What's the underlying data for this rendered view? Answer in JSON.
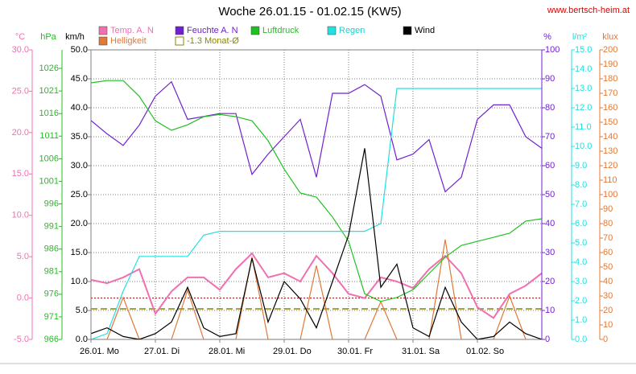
{
  "chart_data": {
    "type": "line",
    "title": "Woche 26.01.15 - 01.02.15 (KW5)",
    "source": "www.bertsch-heim.at",
    "grid": true,
    "x": [
      0,
      6,
      12,
      18,
      24,
      30,
      36,
      42,
      48,
      54,
      60,
      66,
      72,
      78,
      84,
      90,
      96,
      102,
      108,
      114,
      120,
      126,
      132,
      138,
      144,
      150,
      156,
      162,
      168
    ],
    "xlim": [
      0,
      168
    ],
    "xticks": [
      {
        "value": 0,
        "label": "26.01. Mo"
      },
      {
        "value": 24,
        "label": "27.01. Di"
      },
      {
        "value": 48,
        "label": "28.01. Mi"
      },
      {
        "value": 72,
        "label": "29.01. Do"
      },
      {
        "value": 96,
        "label": "30.01. Fr"
      },
      {
        "value": 120,
        "label": "31.01. Sa"
      },
      {
        "value": 144,
        "label": "01.02. So"
      }
    ],
    "series": [
      {
        "name": "Temp. A. N",
        "unit": "°C",
        "color": "#f070b0",
        "ylim": [
          -5,
          30
        ],
        "yticks": [
          {
            "value": -5,
            "label": "-5.0"
          },
          {
            "value": 0,
            "label": "0.0"
          },
          {
            "value": 5,
            "label": "5.0"
          },
          {
            "value": 10,
            "label": "10.0"
          },
          {
            "value": 15,
            "label": "15.0"
          },
          {
            "value": 20,
            "label": "20.0"
          },
          {
            "value": 25,
            "label": "25.0"
          },
          {
            "value": 30,
            "label": "30.0"
          }
        ],
        "values": [
          2.2,
          1.8,
          2.5,
          3.5,
          -1.9,
          0.8,
          2.5,
          2.5,
          1.0,
          3.5,
          5.4,
          2.5,
          3.0,
          2.0,
          5.1,
          3.0,
          0.5,
          0.0,
          2.5,
          2.0,
          1.2,
          3.5,
          5.1,
          3.0,
          -1.1,
          -2.4,
          0.5,
          1.5,
          3.0
        ]
      },
      {
        "name": "Helligkeit",
        "unit": "klux",
        "color": "#e07838",
        "ylim": [
          0,
          200
        ],
        "yticks": [
          0,
          10,
          20,
          30,
          40,
          50,
          60,
          70,
          80,
          90,
          100,
          110,
          120,
          130,
          140,
          150,
          160,
          170,
          180,
          190,
          200
        ],
        "values": [
          0,
          0,
          29,
          0,
          0,
          0,
          34,
          0,
          0,
          0,
          57,
          0,
          0,
          0,
          51,
          0,
          0,
          0,
          26,
          0,
          0,
          0,
          69,
          0,
          0,
          0,
          30,
          0,
          0
        ]
      },
      {
        "name": "Feuchte A. N",
        "unit": "%",
        "color": "#7020d0",
        "ylim": [
          0,
          100
        ],
        "yticks": [
          0,
          10,
          20,
          30,
          40,
          50,
          60,
          70,
          80,
          90,
          100
        ],
        "values": [
          75.6,
          71,
          67,
          74,
          84,
          89,
          76,
          77,
          78,
          78,
          57,
          64,
          70,
          76,
          56,
          85,
          85,
          88,
          84,
          62,
          64,
          69,
          51,
          56,
          76,
          81,
          81,
          70,
          66
        ]
      },
      {
        "name": "Luftdruck",
        "unit": "hPa",
        "color": "#20c020",
        "ylim": [
          966,
          1030.1
        ],
        "yticks": [
          966,
          971,
          976,
          981,
          986,
          991,
          996,
          1001,
          1006,
          1011,
          1016,
          1021,
          1026
        ],
        "values": [
          1022.8,
          1023.3,
          1023.3,
          1019.8,
          1014.4,
          1012.3,
          1013.5,
          1015.3,
          1015.8,
          1015.3,
          1014.4,
          1010.0,
          1003.7,
          998.4,
          997.5,
          993.1,
          987.7,
          976.1,
          974.4,
          975.3,
          977.0,
          980.6,
          984.2,
          986.8,
          987.7,
          988.6,
          989.5,
          992.2,
          992.7
        ]
      },
      {
        "name": "Regen",
        "unit": "l/m²",
        "color": "#20e0e0",
        "ylim": [
          0,
          15
        ],
        "yticks": [
          {
            "value": 0,
            "label": "0.0"
          },
          {
            "value": 1,
            "label": "1.0"
          },
          {
            "value": 2,
            "label": "2.0"
          },
          {
            "value": 3,
            "label": "3.0"
          },
          {
            "value": 4,
            "label": "4.0"
          },
          {
            "value": 5,
            "label": "5.0"
          },
          {
            "value": 6,
            "label": "6.0"
          },
          {
            "value": 7,
            "label": "7.0"
          },
          {
            "value": 8,
            "label": "8.0"
          },
          {
            "value": 9,
            "label": "9.0"
          },
          {
            "value": 10,
            "label": "10.0"
          },
          {
            "value": 11,
            "label": "11.0"
          },
          {
            "value": 12,
            "label": "12.0"
          },
          {
            "value": 13,
            "label": "13.0"
          },
          {
            "value": 14,
            "label": "14.0"
          },
          {
            "value": 15,
            "label": "15.0"
          }
        ],
        "values": [
          0,
          0.3,
          2.5,
          4.3,
          4.3,
          4.3,
          4.3,
          5.4,
          5.6,
          5.6,
          5.6,
          5.6,
          5.6,
          5.6,
          5.6,
          5.6,
          5.6,
          5.6,
          6.0,
          13.0,
          13.0,
          13.0,
          13.0,
          13.0,
          13.0,
          13.0,
          13.0,
          13.0,
          13.0
        ]
      },
      {
        "name": "Wind",
        "unit": "km/h",
        "color": "#000000",
        "ylim": [
          0,
          50
        ],
        "yticks": [
          {
            "value": 0,
            "label": "0.0"
          },
          {
            "value": 5,
            "label": "5.0"
          },
          {
            "value": 10,
            "label": "10.0"
          },
          {
            "value": 15,
            "label": "15.0"
          },
          {
            "value": 20,
            "label": "20.0"
          },
          {
            "value": 25,
            "label": "25.0"
          },
          {
            "value": 30,
            "label": "30.0"
          },
          {
            "value": 35,
            "label": "35.0"
          },
          {
            "value": 40,
            "label": "40.0"
          },
          {
            "value": 45,
            "label": "45.0"
          },
          {
            "value": 50,
            "label": "50.0"
          }
        ],
        "values": [
          1,
          2,
          0.5,
          0,
          1,
          3,
          9,
          2,
          0.5,
          1,
          14,
          3,
          10,
          7,
          2,
          10,
          18,
          33,
          9,
          13,
          2,
          0.5,
          9,
          3,
          0,
          0.5,
          3,
          1,
          0
        ]
      }
    ],
    "reference_line": {
      "name": "-1.3 Monat-Ø",
      "color": "#888800",
      "value": -1.3
    }
  }
}
